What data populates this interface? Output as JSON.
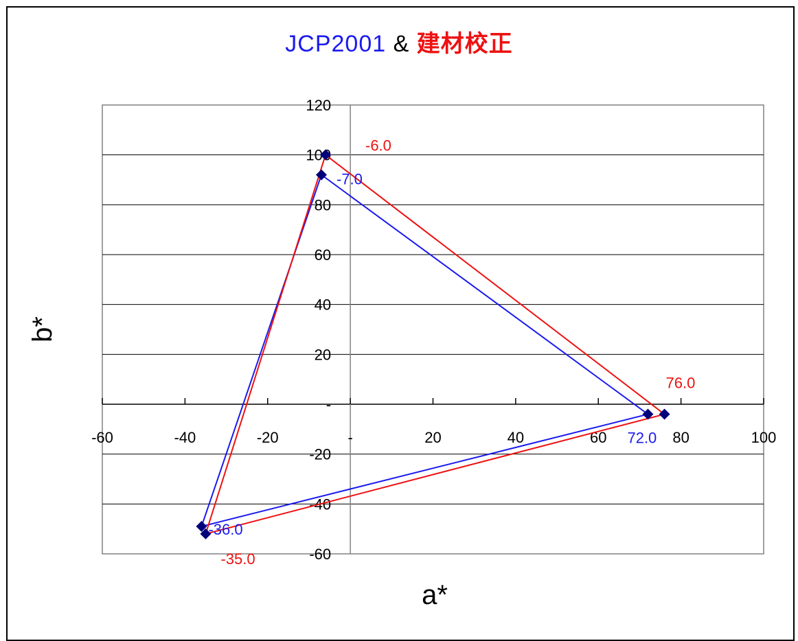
{
  "title": {
    "part1": "JCP2001",
    "part2": "&",
    "part3": "建材校正"
  },
  "colors": {
    "series1": "#1a1aee",
    "series2": "#ee1111",
    "marker": "#00007a"
  },
  "chart_data": {
    "type": "scatter",
    "title": "JCP2001 & 建材校正",
    "xlabel": "a*",
    "ylabel": "b*",
    "xlim": [
      -60,
      100
    ],
    "ylim": [
      -60,
      120
    ],
    "xticks": [
      -60,
      -40,
      -20,
      0,
      20,
      40,
      60,
      80,
      100
    ],
    "yticks": [
      -60,
      -40,
      -20,
      0,
      20,
      40,
      60,
      80,
      100,
      120
    ],
    "xtick_labels": [
      "-60",
      "-40",
      "-20",
      "-",
      "20",
      "40",
      "60",
      "80",
      "100"
    ],
    "ytick_labels": [
      "-60",
      "-40",
      "-20",
      "-",
      "20",
      "40",
      "60",
      "80",
      "100",
      "120"
    ],
    "grid": "horizontal",
    "legend": "none",
    "series": [
      {
        "color": "#1a1aee",
        "closed": true,
        "points": [
          {
            "x": -7,
            "y": 92,
            "label": "-7.0"
          },
          {
            "x": 72,
            "y": -4,
            "label": "72.0"
          },
          {
            "x": -36,
            "y": -49,
            "label": "-36.0"
          }
        ]
      },
      {
        "color": "#ee1111",
        "closed": true,
        "points": [
          {
            "x": -6,
            "y": 100,
            "label": "-6.0"
          },
          {
            "x": 76,
            "y": -4,
            "label": "76.0"
          },
          {
            "x": -35,
            "y": -52,
            "label": "-35.0"
          }
        ]
      }
    ]
  }
}
